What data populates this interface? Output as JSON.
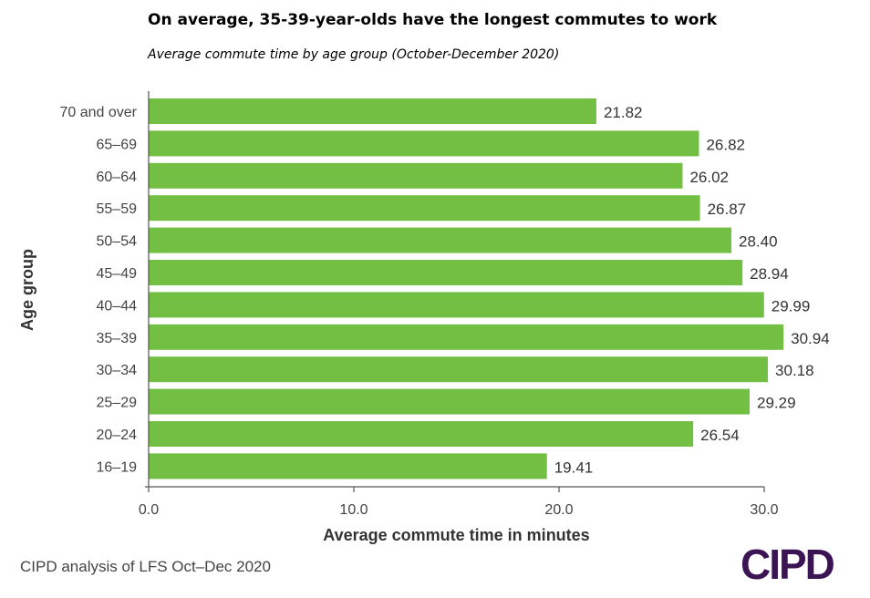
{
  "chart_data": {
    "type": "bar",
    "orientation": "horizontal",
    "title": "On average, 35-39-year-olds have the longest commutes to work",
    "subtitle": "Average commute time by age group (October-December 2020)",
    "categories": [
      "70 and over",
      "65–69",
      "60–64",
      "55–59",
      "50–54",
      "45–49",
      "40–44",
      "35–39",
      "30–34",
      "25–29",
      "20–24",
      "16–19"
    ],
    "values": [
      21.82,
      26.82,
      26.02,
      26.87,
      28.4,
      28.94,
      29.99,
      30.94,
      30.18,
      29.29,
      26.54,
      19.41
    ],
    "value_labels": [
      "21.82",
      "26.82",
      "26.02",
      "26.87",
      "28.40",
      "28.94",
      "29.99",
      "30.94",
      "30.18",
      "29.29",
      "26.54",
      "19.41"
    ],
    "xlabel": "Average commute time in minutes",
    "ylabel": "Age group",
    "xlim": [
      0,
      30
    ],
    "xticks": [
      "0.0",
      "10.0",
      "20.0",
      "30.0"
    ],
    "grid": false,
    "bar_color": "#72bf44"
  },
  "source": "CIPD analysis of LFS Oct–Dec 2020",
  "logo": "CIPD"
}
